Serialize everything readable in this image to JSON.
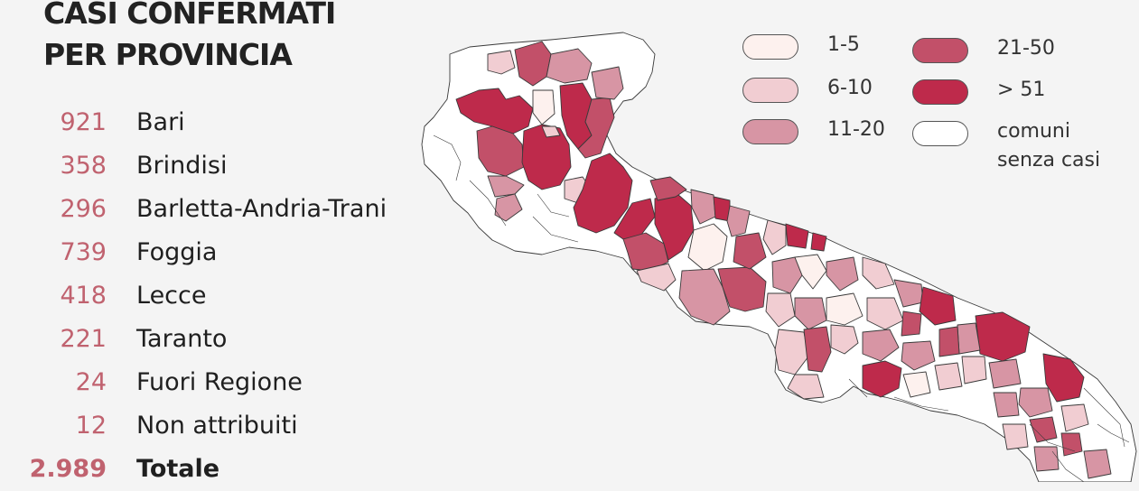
{
  "title": {
    "line1": "CASI CONFERMATI",
    "line2": "PER PROVINCIA"
  },
  "provinces": [
    {
      "value": "921",
      "name": "Bari"
    },
    {
      "value": "358",
      "name": "Brindisi"
    },
    {
      "value": "296",
      "name": "Barletta-Andria-Trani"
    },
    {
      "value": "739",
      "name": "Foggia"
    },
    {
      "value": "418",
      "name": "Lecce"
    },
    {
      "value": "221",
      "name": "Taranto"
    },
    {
      "value": "24",
      "name": "Fuori Regione"
    },
    {
      "value": "12",
      "name": "Non attribuiti"
    }
  ],
  "total": {
    "value": "2.989",
    "name": "Totale"
  },
  "legend": [
    {
      "label": "1-5",
      "color": "#fdf1ee"
    },
    {
      "label": "6-10",
      "color": "#f1cdd2"
    },
    {
      "label": "11-20",
      "color": "#d795a4"
    },
    {
      "label": "21-50",
      "color": "#c25069"
    },
    {
      "label": "> 51",
      "color": "#be2a4b"
    },
    {
      "label": "comuni senza casi",
      "label_line1": "comuni",
      "label_line2": "senza casi",
      "color": "#ffffff"
    }
  ],
  "map": {
    "region": "Puglia",
    "colors": {
      "outline": "#3a3a3a",
      "none": "#ffffff",
      "c1": "#fdf1ee",
      "c2": "#f1cdd2",
      "c3": "#d795a4",
      "c4": "#c25069",
      "c5": "#be2a4b"
    }
  }
}
